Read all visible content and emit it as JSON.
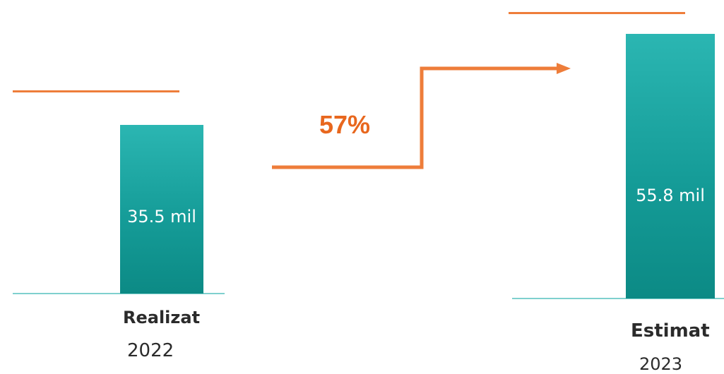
{
  "chart_data": {
    "type": "bar",
    "categories": [
      "Realizat 2022",
      "Estimat 2023"
    ],
    "category_labels": [
      "Realizat",
      "Estimat"
    ],
    "years": [
      "2022",
      "2023"
    ],
    "values": [
      35.5,
      55.8
    ],
    "data_labels": [
      "35.5 mil",
      "55.8 mil"
    ],
    "growth_label": "57%",
    "colors": {
      "bar": "#159c98",
      "arrow": "#ee7d3a",
      "growth_text": "#e8671e",
      "baseline": "#7fd0ce"
    }
  }
}
